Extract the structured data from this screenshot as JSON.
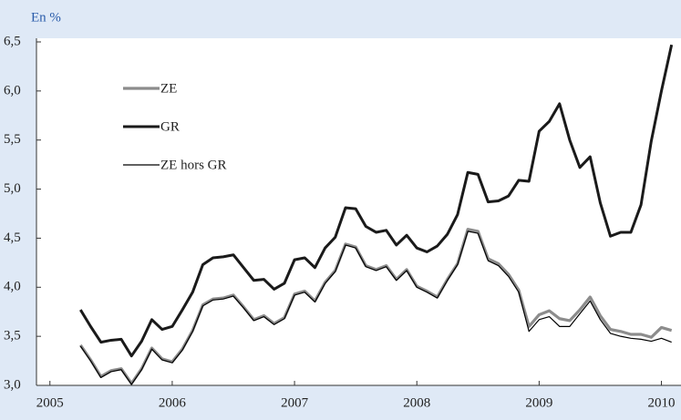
{
  "chart_data": {
    "type": "line",
    "y_label": "En %",
    "x": [
      2005.25,
      2005.333,
      2005.417,
      2005.5,
      2005.583,
      2005.667,
      2005.75,
      2005.833,
      2005.917,
      2006,
      2006.083,
      2006.167,
      2006.25,
      2006.333,
      2006.417,
      2006.5,
      2006.583,
      2006.667,
      2006.75,
      2006.833,
      2006.917,
      2007,
      2007.083,
      2007.167,
      2007.25,
      2007.333,
      2007.417,
      2007.5,
      2007.583,
      2007.667,
      2007.75,
      2007.833,
      2007.917,
      2008,
      2008.083,
      2008.167,
      2008.25,
      2008.333,
      2008.417,
      2008.5,
      2008.583,
      2008.667,
      2008.75,
      2008.833,
      2008.917,
      2009,
      2009.083,
      2009.167,
      2009.25,
      2009.333,
      2009.417,
      2009.5,
      2009.583,
      2009.667,
      2009.75,
      2009.833,
      2009.917,
      2010,
      2010.083
    ],
    "series": [
      {
        "name": "ZE",
        "color": "#8c8c8c",
        "width": 3.2,
        "values": [
          3.41,
          3.26,
          3.09,
          3.15,
          3.17,
          3.02,
          3.17,
          3.38,
          3.27,
          3.24,
          3.37,
          3.56,
          3.82,
          3.88,
          3.89,
          3.92,
          3.8,
          3.67,
          3.71,
          3.63,
          3.69,
          3.93,
          3.96,
          3.86,
          4.05,
          4.17,
          4.44,
          4.41,
          4.22,
          4.18,
          4.22,
          4.08,
          4.18,
          4.01,
          3.96,
          3.9,
          4.08,
          4.24,
          4.59,
          4.57,
          4.29,
          4.24,
          4.13,
          3.97,
          3.6,
          3.72,
          3.76,
          3.68,
          3.66,
          3.77,
          3.9,
          3.71,
          3.57,
          3.55,
          3.52,
          3.52,
          3.49,
          3.59,
          3.56
        ]
      },
      {
        "name": "GR",
        "color": "#1a1a1a",
        "width": 3,
        "values": [
          3.77,
          3.6,
          3.44,
          3.46,
          3.47,
          3.3,
          3.45,
          3.67,
          3.57,
          3.6,
          3.77,
          3.95,
          4.23,
          4.3,
          4.31,
          4.33,
          4.2,
          4.07,
          4.08,
          3.98,
          4.04,
          4.28,
          4.3,
          4.2,
          4.4,
          4.51,
          4.81,
          4.8,
          4.62,
          4.56,
          4.58,
          4.43,
          4.53,
          4.4,
          4.36,
          4.42,
          4.54,
          4.74,
          5.17,
          5.15,
          4.87,
          4.88,
          4.93,
          5.09,
          5.08,
          5.59,
          5.69,
          5.87,
          5.5,
          5.22,
          5.33,
          4.86,
          4.52,
          4.56,
          4.56,
          4.84,
          5.49,
          6.0,
          6.47
        ]
      },
      {
        "name": "ZE hors GR",
        "color": "#000000",
        "width": 1.2,
        "values": [
          3.4,
          3.25,
          3.08,
          3.14,
          3.16,
          3.01,
          3.16,
          3.37,
          3.26,
          3.23,
          3.36,
          3.55,
          3.81,
          3.87,
          3.88,
          3.91,
          3.79,
          3.66,
          3.7,
          3.62,
          3.68,
          3.92,
          3.95,
          3.85,
          4.04,
          4.16,
          4.43,
          4.4,
          4.21,
          4.17,
          4.21,
          4.07,
          4.17,
          4.0,
          3.95,
          3.89,
          4.07,
          4.23,
          4.57,
          4.55,
          4.27,
          4.22,
          4.11,
          3.95,
          3.55,
          3.67,
          3.7,
          3.6,
          3.6,
          3.73,
          3.86,
          3.67,
          3.53,
          3.5,
          3.48,
          3.47,
          3.45,
          3.48,
          3.44
        ]
      }
    ],
    "xlim": [
      2004.89,
      2010.16
    ],
    "xticks": [
      2005,
      2006,
      2007,
      2008,
      2009,
      2010
    ],
    "ylim": [
      3.0,
      6.5
    ],
    "yticks": [
      {
        "value": 3.0,
        "label": "3,0"
      },
      {
        "value": 3.5,
        "label": "3,5"
      },
      {
        "value": 4.0,
        "label": "4,0"
      },
      {
        "value": 4.5,
        "label": "4,5"
      },
      {
        "value": 5.0,
        "label": "5,0"
      },
      {
        "value": 5.5,
        "label": "5,5"
      },
      {
        "value": 6.0,
        "label": "6,0"
      },
      {
        "value": 6.5,
        "label": "6,5"
      }
    ],
    "legend": "upper left",
    "grid": false
  }
}
